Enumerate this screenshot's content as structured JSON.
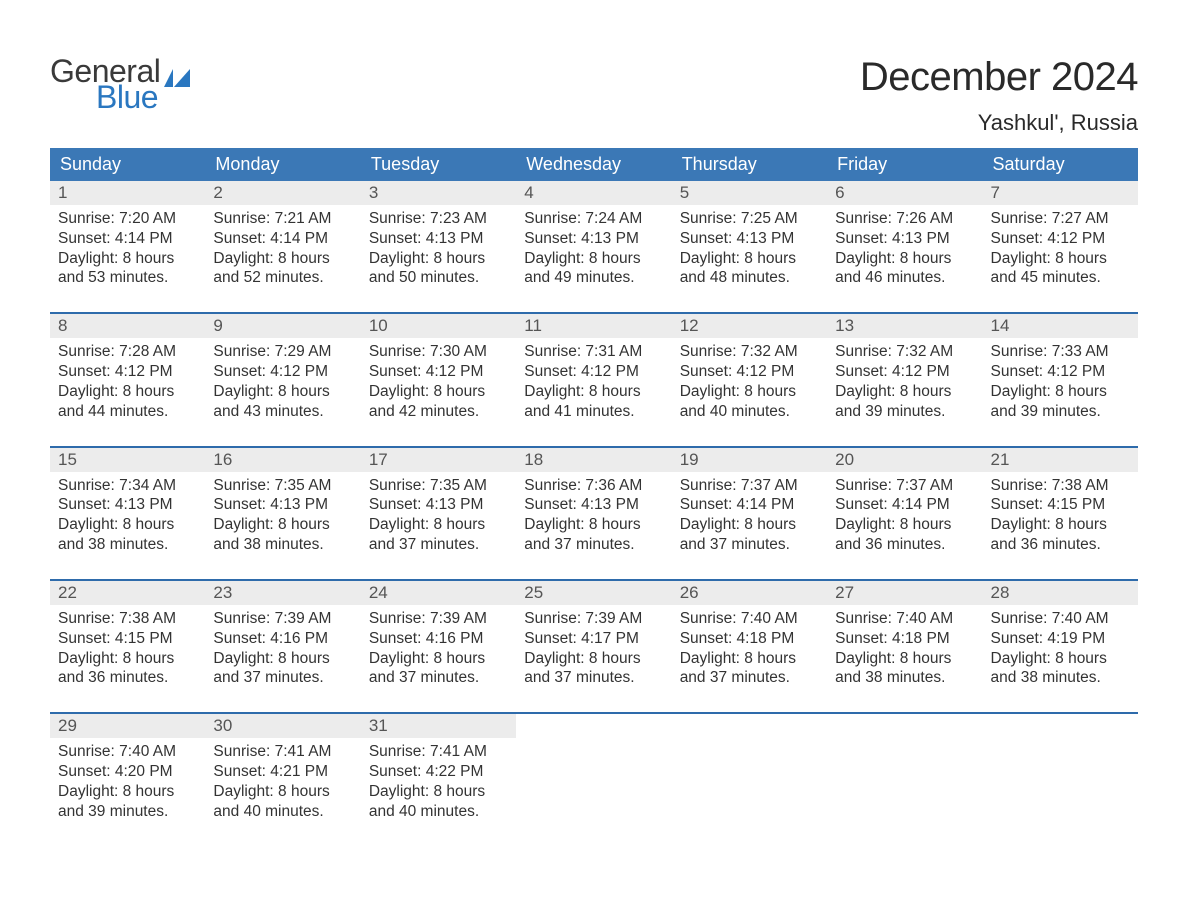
{
  "logo": {
    "word1": "General",
    "word2": "Blue"
  },
  "header": {
    "month_title": "December 2024",
    "location": "Yashkul', Russia"
  },
  "colors": {
    "header_blue": "#3b78b6",
    "row_accent": "#2e6bab",
    "daynum_bg": "#ececec",
    "text": "#333333",
    "logo_dark": "#3a3a3a",
    "logo_blue": "#2a77c0",
    "background": "#ffffff"
  },
  "weekdays": [
    "Sunday",
    "Monday",
    "Tuesday",
    "Wednesday",
    "Thursday",
    "Friday",
    "Saturday"
  ],
  "labels": {
    "sunrise": "Sunrise:",
    "sunset": "Sunset:",
    "daylight": "Daylight:",
    "hours_word": "hours",
    "and_word": "and",
    "minutes_word": "minutes."
  },
  "days": [
    {
      "n": 1,
      "sunrise": "7:20 AM",
      "sunset": "4:14 PM",
      "dl_h": 8,
      "dl_m": 53
    },
    {
      "n": 2,
      "sunrise": "7:21 AM",
      "sunset": "4:14 PM",
      "dl_h": 8,
      "dl_m": 52
    },
    {
      "n": 3,
      "sunrise": "7:23 AM",
      "sunset": "4:13 PM",
      "dl_h": 8,
      "dl_m": 50
    },
    {
      "n": 4,
      "sunrise": "7:24 AM",
      "sunset": "4:13 PM",
      "dl_h": 8,
      "dl_m": 49
    },
    {
      "n": 5,
      "sunrise": "7:25 AM",
      "sunset": "4:13 PM",
      "dl_h": 8,
      "dl_m": 48
    },
    {
      "n": 6,
      "sunrise": "7:26 AM",
      "sunset": "4:13 PM",
      "dl_h": 8,
      "dl_m": 46
    },
    {
      "n": 7,
      "sunrise": "7:27 AM",
      "sunset": "4:12 PM",
      "dl_h": 8,
      "dl_m": 45
    },
    {
      "n": 8,
      "sunrise": "7:28 AM",
      "sunset": "4:12 PM",
      "dl_h": 8,
      "dl_m": 44
    },
    {
      "n": 9,
      "sunrise": "7:29 AM",
      "sunset": "4:12 PM",
      "dl_h": 8,
      "dl_m": 43
    },
    {
      "n": 10,
      "sunrise": "7:30 AM",
      "sunset": "4:12 PM",
      "dl_h": 8,
      "dl_m": 42
    },
    {
      "n": 11,
      "sunrise": "7:31 AM",
      "sunset": "4:12 PM",
      "dl_h": 8,
      "dl_m": 41
    },
    {
      "n": 12,
      "sunrise": "7:32 AM",
      "sunset": "4:12 PM",
      "dl_h": 8,
      "dl_m": 40
    },
    {
      "n": 13,
      "sunrise": "7:32 AM",
      "sunset": "4:12 PM",
      "dl_h": 8,
      "dl_m": 39
    },
    {
      "n": 14,
      "sunrise": "7:33 AM",
      "sunset": "4:12 PM",
      "dl_h": 8,
      "dl_m": 39
    },
    {
      "n": 15,
      "sunrise": "7:34 AM",
      "sunset": "4:13 PM",
      "dl_h": 8,
      "dl_m": 38
    },
    {
      "n": 16,
      "sunrise": "7:35 AM",
      "sunset": "4:13 PM",
      "dl_h": 8,
      "dl_m": 38
    },
    {
      "n": 17,
      "sunrise": "7:35 AM",
      "sunset": "4:13 PM",
      "dl_h": 8,
      "dl_m": 37
    },
    {
      "n": 18,
      "sunrise": "7:36 AM",
      "sunset": "4:13 PM",
      "dl_h": 8,
      "dl_m": 37
    },
    {
      "n": 19,
      "sunrise": "7:37 AM",
      "sunset": "4:14 PM",
      "dl_h": 8,
      "dl_m": 37
    },
    {
      "n": 20,
      "sunrise": "7:37 AM",
      "sunset": "4:14 PM",
      "dl_h": 8,
      "dl_m": 36
    },
    {
      "n": 21,
      "sunrise": "7:38 AM",
      "sunset": "4:15 PM",
      "dl_h": 8,
      "dl_m": 36
    },
    {
      "n": 22,
      "sunrise": "7:38 AM",
      "sunset": "4:15 PM",
      "dl_h": 8,
      "dl_m": 36
    },
    {
      "n": 23,
      "sunrise": "7:39 AM",
      "sunset": "4:16 PM",
      "dl_h": 8,
      "dl_m": 37
    },
    {
      "n": 24,
      "sunrise": "7:39 AM",
      "sunset": "4:16 PM",
      "dl_h": 8,
      "dl_m": 37
    },
    {
      "n": 25,
      "sunrise": "7:39 AM",
      "sunset": "4:17 PM",
      "dl_h": 8,
      "dl_m": 37
    },
    {
      "n": 26,
      "sunrise": "7:40 AM",
      "sunset": "4:18 PM",
      "dl_h": 8,
      "dl_m": 37
    },
    {
      "n": 27,
      "sunrise": "7:40 AM",
      "sunset": "4:18 PM",
      "dl_h": 8,
      "dl_m": 38
    },
    {
      "n": 28,
      "sunrise": "7:40 AM",
      "sunset": "4:19 PM",
      "dl_h": 8,
      "dl_m": 38
    },
    {
      "n": 29,
      "sunrise": "7:40 AM",
      "sunset": "4:20 PM",
      "dl_h": 8,
      "dl_m": 39
    },
    {
      "n": 30,
      "sunrise": "7:41 AM",
      "sunset": "4:21 PM",
      "dl_h": 8,
      "dl_m": 40
    },
    {
      "n": 31,
      "sunrise": "7:41 AM",
      "sunset": "4:22 PM",
      "dl_h": 8,
      "dl_m": 40
    }
  ],
  "layout": {
    "start_weekday_index": 0,
    "weeks": 5,
    "cols": 7
  }
}
